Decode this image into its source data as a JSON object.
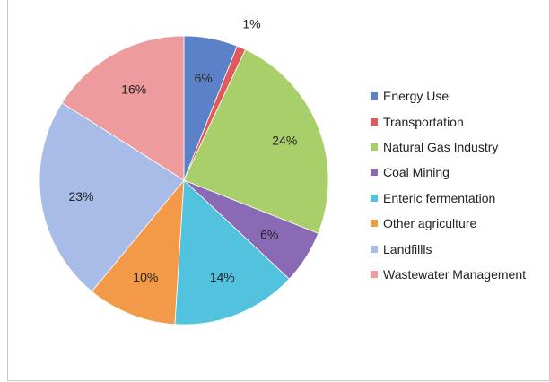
{
  "chart_data": {
    "type": "pie",
    "title": "",
    "categories": [
      "Energy Use",
      "Transportation",
      "Natural Gas Industry",
      "Coal Mining",
      "Enteric fermentation",
      "Other agriculture",
      "Landfillls",
      "Wastewater Management"
    ],
    "values": [
      6,
      1,
      24,
      6,
      14,
      10,
      23,
      16
    ],
    "value_labels": [
      "6%",
      "1%",
      "24%",
      "6%",
      "14%",
      "10%",
      "23%",
      "16%"
    ],
    "colors": [
      "#5b82c8",
      "#e05a5c",
      "#a9cf6a",
      "#8b6ab5",
      "#52c3df",
      "#f39a49",
      "#a7bce6",
      "#ed9b9d"
    ],
    "legend_position": "right",
    "grid": false
  }
}
